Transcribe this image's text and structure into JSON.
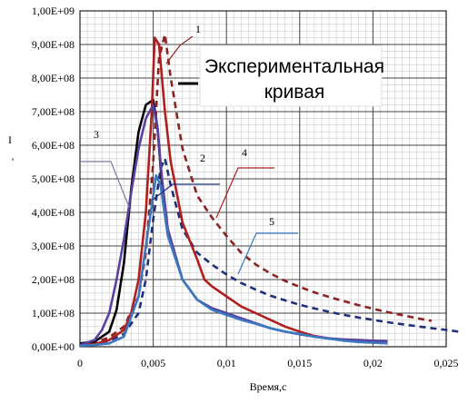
{
  "chart_data": {
    "type": "line",
    "title": "",
    "xlabel": "Время,с",
    "ylabel": "",
    "xlim": [
      0,
      0.025
    ],
    "ylim": [
      0,
      1000000000
    ],
    "x_ticks": [
      "0",
      "0,005",
      "0,01",
      "0,015",
      "0,02",
      "0,025"
    ],
    "y_ticks": [
      "0,00E+00",
      "1,00E+08",
      "2,00E+08",
      "3,00E+08",
      "4,00E+08",
      "5,00E+08",
      "6,00E+08",
      "7,00E+08",
      "8,00E+08",
      "9,00E+08",
      "1,00E+09"
    ],
    "grid": true,
    "legend": {
      "placement": "top-right",
      "line1": "Экспериментальная",
      "line2": "кривая"
    },
    "series": [
      {
        "color": "#8b2322",
        "dashed": true,
        "callout": "1",
        "points": [
          [
            0,
            8000000
          ],
          [
            0.001,
            12000000
          ],
          [
            0.002,
            28000000
          ],
          [
            0.003,
            60000000
          ],
          [
            0.004,
            150000000
          ],
          [
            0.0045,
            280000000
          ],
          [
            0.005,
            550000000
          ],
          [
            0.0054,
            860000000
          ],
          [
            0.0058,
            930000000
          ],
          [
            0.0062,
            800000000
          ],
          [
            0.007,
            590000000
          ],
          [
            0.008,
            450000000
          ],
          [
            0.009,
            385000000
          ],
          [
            0.01,
            330000000
          ],
          [
            0.011,
            280000000
          ],
          [
            0.012,
            245000000
          ],
          [
            0.013,
            218000000
          ],
          [
            0.014,
            196000000
          ],
          [
            0.015,
            178000000
          ],
          [
            0.016,
            162000000
          ],
          [
            0.017,
            148000000
          ],
          [
            0.018,
            136000000
          ],
          [
            0.019,
            124000000
          ],
          [
            0.02,
            113000000
          ],
          [
            0.021,
            103000000
          ],
          [
            0.022,
            94000000
          ],
          [
            0.023,
            85000000
          ],
          [
            0.024,
            77000000
          ]
        ]
      },
      {
        "color": "#1f2f7a",
        "dashed": true,
        "callout": "2",
        "points": [
          [
            0,
            5000000
          ],
          [
            0.001,
            8000000
          ],
          [
            0.002,
            18000000
          ],
          [
            0.003,
            38000000
          ],
          [
            0.004,
            100000000
          ],
          [
            0.0045,
            200000000
          ],
          [
            0.005,
            380000000
          ],
          [
            0.0055,
            530000000
          ],
          [
            0.0058,
            560000000
          ],
          [
            0.0062,
            480000000
          ],
          [
            0.007,
            350000000
          ],
          [
            0.008,
            280000000
          ],
          [
            0.009,
            245000000
          ],
          [
            0.01,
            215000000
          ],
          [
            0.011,
            190000000
          ],
          [
            0.012,
            170000000
          ],
          [
            0.013,
            152000000
          ],
          [
            0.014,
            138000000
          ],
          [
            0.015,
            125000000
          ],
          [
            0.016,
            114000000
          ],
          [
            0.017,
            104000000
          ],
          [
            0.018,
            95000000
          ],
          [
            0.019,
            87000000
          ],
          [
            0.02,
            80000000
          ],
          [
            0.021,
            73000000
          ],
          [
            0.022,
            67000000
          ],
          [
            0.023,
            61000000
          ],
          [
            0.024,
            55000000
          ],
          [
            0.025,
            50000000
          ],
          [
            0.026,
            44000000
          ]
        ]
      },
      {
        "color": "#000000",
        "dashed": false,
        "callout": "",
        "points": [
          [
            0,
            10000000
          ],
          [
            0.001,
            15000000
          ],
          [
            0.002,
            45000000
          ],
          [
            0.0025,
            110000000
          ],
          [
            0.003,
            250000000
          ],
          [
            0.0035,
            470000000
          ],
          [
            0.004,
            640000000
          ],
          [
            0.0045,
            720000000
          ],
          [
            0.005,
            735000000
          ],
          [
            0.0053,
            650000000
          ],
          [
            0.0056,
            480000000
          ]
        ]
      },
      {
        "color": "#b01e1e",
        "dashed": false,
        "callout": "4",
        "points": [
          [
            0,
            5000000
          ],
          [
            0.001,
            8000000
          ],
          [
            0.002,
            20000000
          ],
          [
            0.003,
            50000000
          ],
          [
            0.0035,
            100000000
          ],
          [
            0.004,
            200000000
          ],
          [
            0.0045,
            400000000
          ],
          [
            0.0049,
            700000000
          ],
          [
            0.0051,
            920000000
          ],
          [
            0.0054,
            900000000
          ],
          [
            0.0058,
            700000000
          ],
          [
            0.0062,
            550000000
          ],
          [
            0.007,
            370000000
          ],
          [
            0.008,
            260000000
          ],
          [
            0.0085,
            200000000
          ],
          [
            0.009,
            180000000
          ],
          [
            0.01,
            150000000
          ],
          [
            0.011,
            120000000
          ],
          [
            0.012,
            100000000
          ],
          [
            0.013,
            80000000
          ],
          [
            0.014,
            60000000
          ],
          [
            0.015,
            45000000
          ],
          [
            0.016,
            32000000
          ],
          [
            0.017,
            25000000
          ],
          [
            0.018,
            20000000
          ],
          [
            0.019,
            18000000
          ],
          [
            0.02,
            17000000
          ],
          [
            0.021,
            16000000
          ]
        ]
      },
      {
        "color": "#5a3fa0",
        "dashed": false,
        "callout": "3",
        "points": [
          [
            0,
            5000000
          ],
          [
            0.001,
            20000000
          ],
          [
            0.0015,
            50000000
          ],
          [
            0.002,
            100000000
          ],
          [
            0.0025,
            200000000
          ],
          [
            0.003,
            320000000
          ],
          [
            0.0035,
            460000000
          ],
          [
            0.004,
            590000000
          ],
          [
            0.0045,
            680000000
          ],
          [
            0.005,
            720000000
          ],
          [
            0.0053,
            650000000
          ],
          [
            0.0056,
            500000000
          ],
          [
            0.006,
            350000000
          ],
          [
            0.007,
            200000000
          ],
          [
            0.008,
            140000000
          ],
          [
            0.009,
            115000000
          ],
          [
            0.01,
            100000000
          ],
          [
            0.011,
            85000000
          ],
          [
            0.012,
            70000000
          ],
          [
            0.013,
            55000000
          ],
          [
            0.014,
            45000000
          ],
          [
            0.015,
            37000000
          ],
          [
            0.016,
            30000000
          ],
          [
            0.017,
            25000000
          ],
          [
            0.018,
            22000000
          ],
          [
            0.019,
            20000000
          ],
          [
            0.02,
            18000000
          ],
          [
            0.021,
            17000000
          ]
        ]
      },
      {
        "color": "#3a78c0",
        "dashed": false,
        "callout": "5",
        "points": [
          [
            0,
            3000000
          ],
          [
            0.001,
            5000000
          ],
          [
            0.002,
            10000000
          ],
          [
            0.003,
            30000000
          ],
          [
            0.004,
            150000000
          ],
          [
            0.0045,
            300000000
          ],
          [
            0.005,
            450000000
          ],
          [
            0.0052,
            510000000
          ],
          [
            0.0055,
            480000000
          ],
          [
            0.006,
            330000000
          ],
          [
            0.007,
            200000000
          ],
          [
            0.008,
            140000000
          ],
          [
            0.009,
            110000000
          ],
          [
            0.01,
            95000000
          ],
          [
            0.011,
            80000000
          ],
          [
            0.012,
            68000000
          ],
          [
            0.013,
            55000000
          ],
          [
            0.014,
            45000000
          ],
          [
            0.015,
            38000000
          ],
          [
            0.016,
            30000000
          ],
          [
            0.017,
            24000000
          ],
          [
            0.018,
            18000000
          ],
          [
            0.019,
            14000000
          ],
          [
            0.02,
            12000000
          ],
          [
            0.021,
            10000000
          ]
        ]
      }
    ],
    "axis_stray_marks": [
      "I",
      "'"
    ]
  }
}
